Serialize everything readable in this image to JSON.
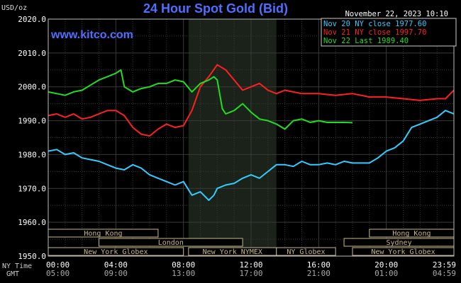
{
  "header": {
    "title": "24 Hour Spot Gold (Bid)",
    "unit": "USD/oz",
    "watermark": "www.kitco.com",
    "datetime": "November 22, 2023 10:10"
  },
  "colors": {
    "background": "#000000",
    "grid": "#3a3a3a",
    "axis": "#bbbbbb",
    "title": "#4f6fff",
    "watermark": "#4f6fff",
    "nymex_shade": "#1a2219",
    "session_box": "#c8b98a"
  },
  "legend": {
    "items": [
      {
        "text": "Nov 20 NY close 1977.60",
        "color": "#33ccff"
      },
      {
        "text": "Nov 21 NY close 1997.70",
        "color": "#ff2020"
      },
      {
        "text": "Nov 22 Last 1989.40",
        "color": "#22dd22"
      }
    ]
  },
  "axis_labels": {
    "ny_time": "NY Time",
    "gmt": "GMT"
  },
  "sessions": [
    {
      "name": "Hong Kong",
      "start": 0.0,
      "end": 6.5
    },
    {
      "name": "London",
      "start": 3.0,
      "end": 11.5
    },
    {
      "name": "New York Globex",
      "start": 0.0,
      "end": 8.0
    },
    {
      "name": "New York NYMEX",
      "start": 8.3,
      "end": 13.5
    },
    {
      "name": "NY Globex",
      "start": 13.5,
      "end": 17.0
    },
    {
      "name": "Hong Kong",
      "start": 19.0,
      "end": 24.0
    },
    {
      "name": "Sydney",
      "start": 17.5,
      "end": 24.0
    },
    {
      "name": "New York Globex",
      "start": 18.0,
      "end": 24.0
    }
  ],
  "chart_data": {
    "type": "line",
    "title": "24 Hour Spot Gold (Bid)",
    "ylabel": "USD/oz",
    "ylim": [
      1950,
      2020
    ],
    "yticks": [
      1950.0,
      1960.0,
      1970.0,
      1980.0,
      1990.0,
      2000.0,
      2010.0,
      2020.0
    ],
    "ytick_labels": [
      "1950.0",
      "1960.0",
      "1970.0",
      "1980.0",
      "1990.0",
      "2000.0",
      "2010.0",
      "2020.0"
    ],
    "xlim": [
      0,
      24
    ],
    "xticks": [
      0,
      4,
      8,
      12,
      16,
      20,
      24
    ],
    "xtick_labels_ny": [
      "00:00",
      "04:00",
      "08:00",
      "12:00",
      "16:00",
      "20:00",
      "23:59"
    ],
    "xtick_labels_gmt": [
      "05:00",
      "09:00",
      "13:00",
      "17:00",
      "21:00",
      "01:00",
      "04:59"
    ],
    "nymex_shade": [
      8.3,
      13.5
    ],
    "grid": true,
    "legend_position": "top-right",
    "series": [
      {
        "name": "Nov 20 NY close 1977.60",
        "color": "#33ccff",
        "x": [
          0,
          0.5,
          1.0,
          1.5,
          2.0,
          2.5,
          3.0,
          3.5,
          4.0,
          4.5,
          5.0,
          5.5,
          6.0,
          6.5,
          7.0,
          7.5,
          8.0,
          8.5,
          9.0,
          9.5,
          9.8,
          10.0,
          10.5,
          11.0,
          11.5,
          12.0,
          12.5,
          13.0,
          13.5,
          14.0,
          14.5,
          15.0,
          15.5,
          16.0,
          16.5,
          17.0,
          17.5,
          18.0,
          18.5,
          19.0,
          19.5,
          20.0,
          20.5,
          21.0,
          21.5,
          22.0,
          22.5,
          23.0,
          23.5,
          24.0
        ],
        "y": [
          1981,
          1981.5,
          1980,
          1980.5,
          1979,
          1978.5,
          1978,
          1977,
          1976,
          1975.5,
          1977,
          1976,
          1974,
          1973,
          1972,
          1971,
          1972,
          1968,
          1969,
          1966.5,
          1968,
          1970,
          1971,
          1971.5,
          1973,
          1974,
          1973,
          1975,
          1977,
          1977,
          1976.5,
          1978,
          1977,
          1977,
          1977.5,
          1977,
          1978,
          1977.5,
          1977.5,
          1977.5,
          1979,
          1981,
          1982,
          1984,
          1988,
          1989,
          1990,
          1991,
          1993,
          1992
        ]
      },
      {
        "name": "Nov 21 NY close 1997.70",
        "color": "#ff2020",
        "x": [
          0,
          0.5,
          1.0,
          1.5,
          2.0,
          2.5,
          3.0,
          3.5,
          4.0,
          4.5,
          5.0,
          5.5,
          6.0,
          6.5,
          7.0,
          7.5,
          8.0,
          8.5,
          9.0,
          9.5,
          10.0,
          10.5,
          11.0,
          11.5,
          12.0,
          12.5,
          13.0,
          13.5,
          14.0,
          15.0,
          16.0,
          17.0,
          18.0,
          19.0,
          20.0,
          21.0,
          22.0,
          23.0,
          23.5,
          24.0
        ],
        "y": [
          1991.5,
          1992,
          1991,
          1992,
          1990.5,
          1991,
          1992,
          1993,
          1993,
          1991.5,
          1988,
          1986,
          1985.5,
          1987.5,
          1989,
          1988,
          1988.5,
          1993,
          2000,
          2003,
          2006.5,
          2005,
          2002,
          1999,
          2000,
          2001,
          1999,
          1998,
          1999,
          1998,
          1998,
          1997.5,
          1998,
          1997,
          1997,
          1996.5,
          1996,
          1996.5,
          1996.5,
          1999
        ]
      },
      {
        "name": "Nov 22 Last 1989.40",
        "color": "#22dd22",
        "x": [
          0,
          0.5,
          1.0,
          1.5,
          2.0,
          2.5,
          3.0,
          3.5,
          4.0,
          4.3,
          4.5,
          5.0,
          5.5,
          6.0,
          6.5,
          7.0,
          7.5,
          8.0,
          8.5,
          9.0,
          9.5,
          9.8,
          10.0,
          10.3,
          10.5,
          11.0,
          11.5,
          12.0,
          12.5,
          13.0,
          13.5,
          14.0,
          14.5,
          15.0,
          15.5,
          16.0,
          16.5,
          17.0,
          17.5,
          18.0
        ],
        "y": [
          1998.5,
          1998,
          1997.5,
          1998.5,
          1999,
          2000.5,
          2002,
          2003,
          2004,
          2005,
          2000,
          1998.5,
          1999.5,
          2000,
          2001,
          2001,
          2002,
          2001.5,
          1998.5,
          2001,
          2002,
          2003,
          2002,
          1993.5,
          1992,
          1993,
          1995,
          1992.5,
          1990.5,
          1990,
          1989,
          1987.5,
          1990,
          1990.5,
          1989.5,
          1990,
          1989.5,
          1989.5,
          1989.5,
          1989.4
        ]
      }
    ]
  }
}
